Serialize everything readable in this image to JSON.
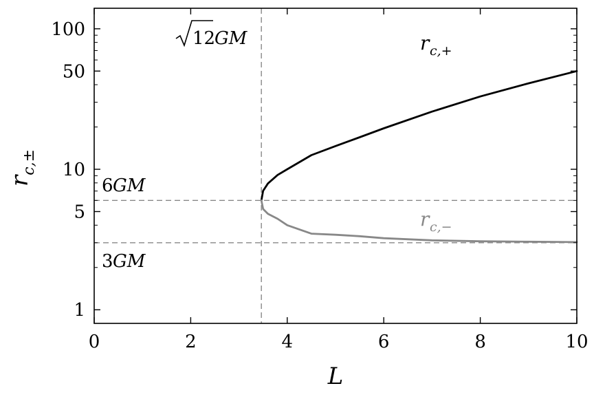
{
  "chart_data": {
    "type": "line",
    "xlabel": "L",
    "ylabel": "r_{c,±}",
    "xlim": [
      0,
      10
    ],
    "ylim": [
      0.8,
      140
    ],
    "yscale": "log",
    "xticks": [
      "0",
      "2",
      "4",
      "6",
      "8",
      "10"
    ],
    "xtick_values": [
      0,
      2,
      4,
      6,
      8,
      10
    ],
    "yticks": [
      "100",
      "50",
      "10",
      "5",
      "1"
    ],
    "ytick_values": [
      100,
      50,
      10,
      5,
      1
    ],
    "grid": false,
    "legend": "none",
    "reference_lines": [
      {
        "orientation": "vertical",
        "value": 3.4641,
        "label": "√12GM"
      },
      {
        "orientation": "horizontal",
        "value": 6,
        "label": "6GM"
      },
      {
        "orientation": "horizontal",
        "value": 3,
        "label": "3GM"
      }
    ],
    "series": [
      {
        "name": "r_{c,+}",
        "color": "#000000",
        "x": [
          3.4641,
          3.5,
          3.6,
          3.8,
          4.0,
          4.5,
          5.0,
          5.5,
          6.0,
          7.0,
          8.0,
          9.0,
          10.0
        ],
        "y": [
          6.0,
          7.02,
          7.92,
          9.11,
          10.0,
          12.6,
          14.63,
          16.89,
          19.56,
          25.73,
          33.0,
          40.9,
          50.0
        ]
      },
      {
        "name": "r_{c,−}",
        "color": "#888888",
        "x": [
          3.4641,
          3.5,
          3.6,
          3.8,
          4.0,
          4.5,
          5.0,
          5.5,
          6.0,
          7.0,
          8.0,
          9.0,
          10.0
        ],
        "y": [
          6.0,
          5.22,
          4.82,
          4.44,
          4.0,
          3.48,
          3.42,
          3.34,
          3.23,
          3.12,
          3.07,
          3.05,
          3.03
        ]
      }
    ],
    "colors": {
      "axis": "#000000",
      "reference": "#888888",
      "upper": "#000000",
      "lower": "#888888"
    }
  }
}
